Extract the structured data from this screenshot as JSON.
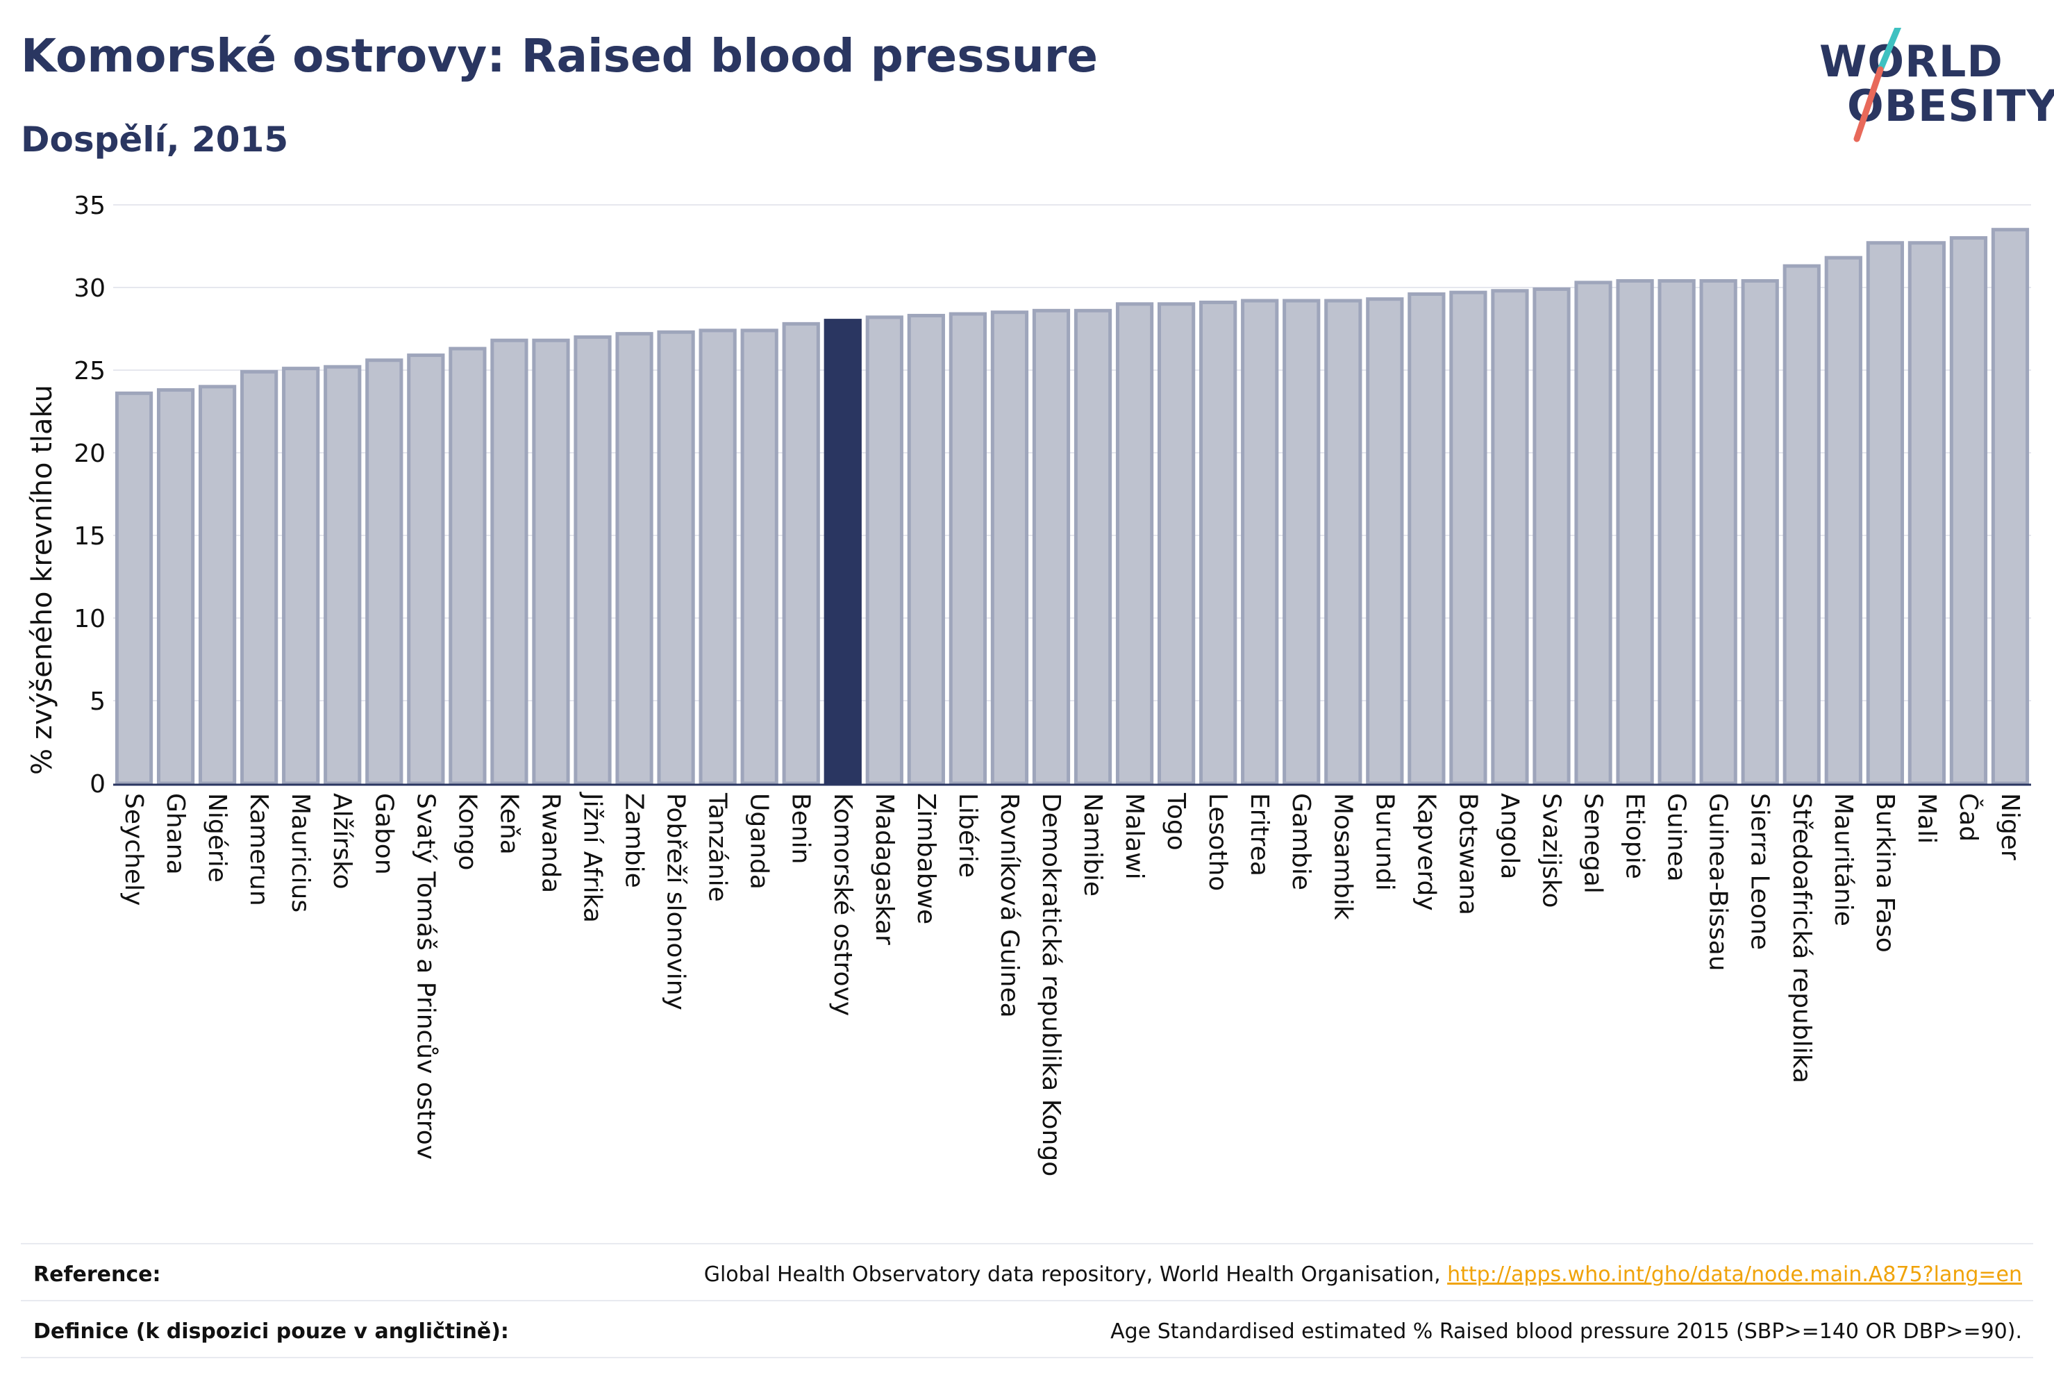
{
  "header": {
    "title": "Komorské ostrovy: Raised blood pressure",
    "subtitle": "Dospělí, 2015"
  },
  "logo": {
    "line1": "WORLD",
    "line2": "OBESITY",
    "colors": {
      "text": "#2a3661",
      "slash_top": "#3ec1c1",
      "slash_bottom": "#e8695a"
    }
  },
  "colors": {
    "bar_fill": "#bec2cf",
    "bar_stroke": "#9ea5bb",
    "highlight_fill": "#2a3661",
    "axis": "#2a3661",
    "grid": "#e6e7ee"
  },
  "chart_data": {
    "type": "bar",
    "ylabel": "% zvýšeného krevního tlaku",
    "ylim": [
      0,
      35
    ],
    "yticks": [
      0,
      5,
      10,
      15,
      20,
      25,
      30,
      35
    ],
    "grid": true,
    "highlight": "Komorské ostrovy",
    "categories": [
      "Seychely",
      "Ghana",
      "Nigérie",
      "Kamerun",
      "Mauricius",
      "Alžírsko",
      "Gabon",
      "Svatý Tomáš a Princův ostrov",
      "Kongo",
      "Keňa",
      "Rwanda",
      "Jižní Afrika",
      "Zambie",
      "Pobřeží slonoviny",
      "Tanzánie",
      "Uganda",
      "Benin",
      "Komorské ostrovy",
      "Madagaskar",
      "Zimbabwe",
      "Libérie",
      "Rovníková Guinea",
      "Demokratická republika Kongo",
      "Namibie",
      "Malawi",
      "Togo",
      "Lesotho",
      "Eritrea",
      "Gambie",
      "Mosambik",
      "Burundi",
      "Kapverdy",
      "Botswana",
      "Angola",
      "Svazijsko",
      "Senegal",
      "Etiopie",
      "Guinea",
      "Guinea-Bissau",
      "Sierra Leone",
      "Středoafrická republika",
      "Mauritánie",
      "Burkina Faso",
      "Mali",
      "Čad",
      "Niger"
    ],
    "values": [
      23.6,
      23.8,
      24.0,
      24.9,
      25.1,
      25.2,
      25.6,
      25.9,
      26.3,
      26.8,
      26.8,
      27.0,
      27.2,
      27.3,
      27.4,
      27.4,
      27.8,
      28.0,
      28.2,
      28.3,
      28.4,
      28.5,
      28.6,
      28.6,
      29.0,
      29.0,
      29.1,
      29.2,
      29.2,
      29.2,
      29.3,
      29.6,
      29.7,
      29.8,
      29.9,
      30.3,
      30.4,
      30.4,
      30.4,
      30.4,
      31.3,
      31.8,
      32.7,
      32.7,
      33.0,
      33.5
    ]
  },
  "footer": {
    "reference_label": "Reference:",
    "reference_text": "Global Health Observatory data repository, World Health Organisation, ",
    "reference_link": "http://apps.who.int/gho/data/node.main.A875?lang=en",
    "definition_label": "Definice (k dispozici pouze v angličtině):",
    "definition_text": "Age Standardised estimated % Raised blood pressure 2015 (SBP>=140 OR DBP>=90)."
  }
}
